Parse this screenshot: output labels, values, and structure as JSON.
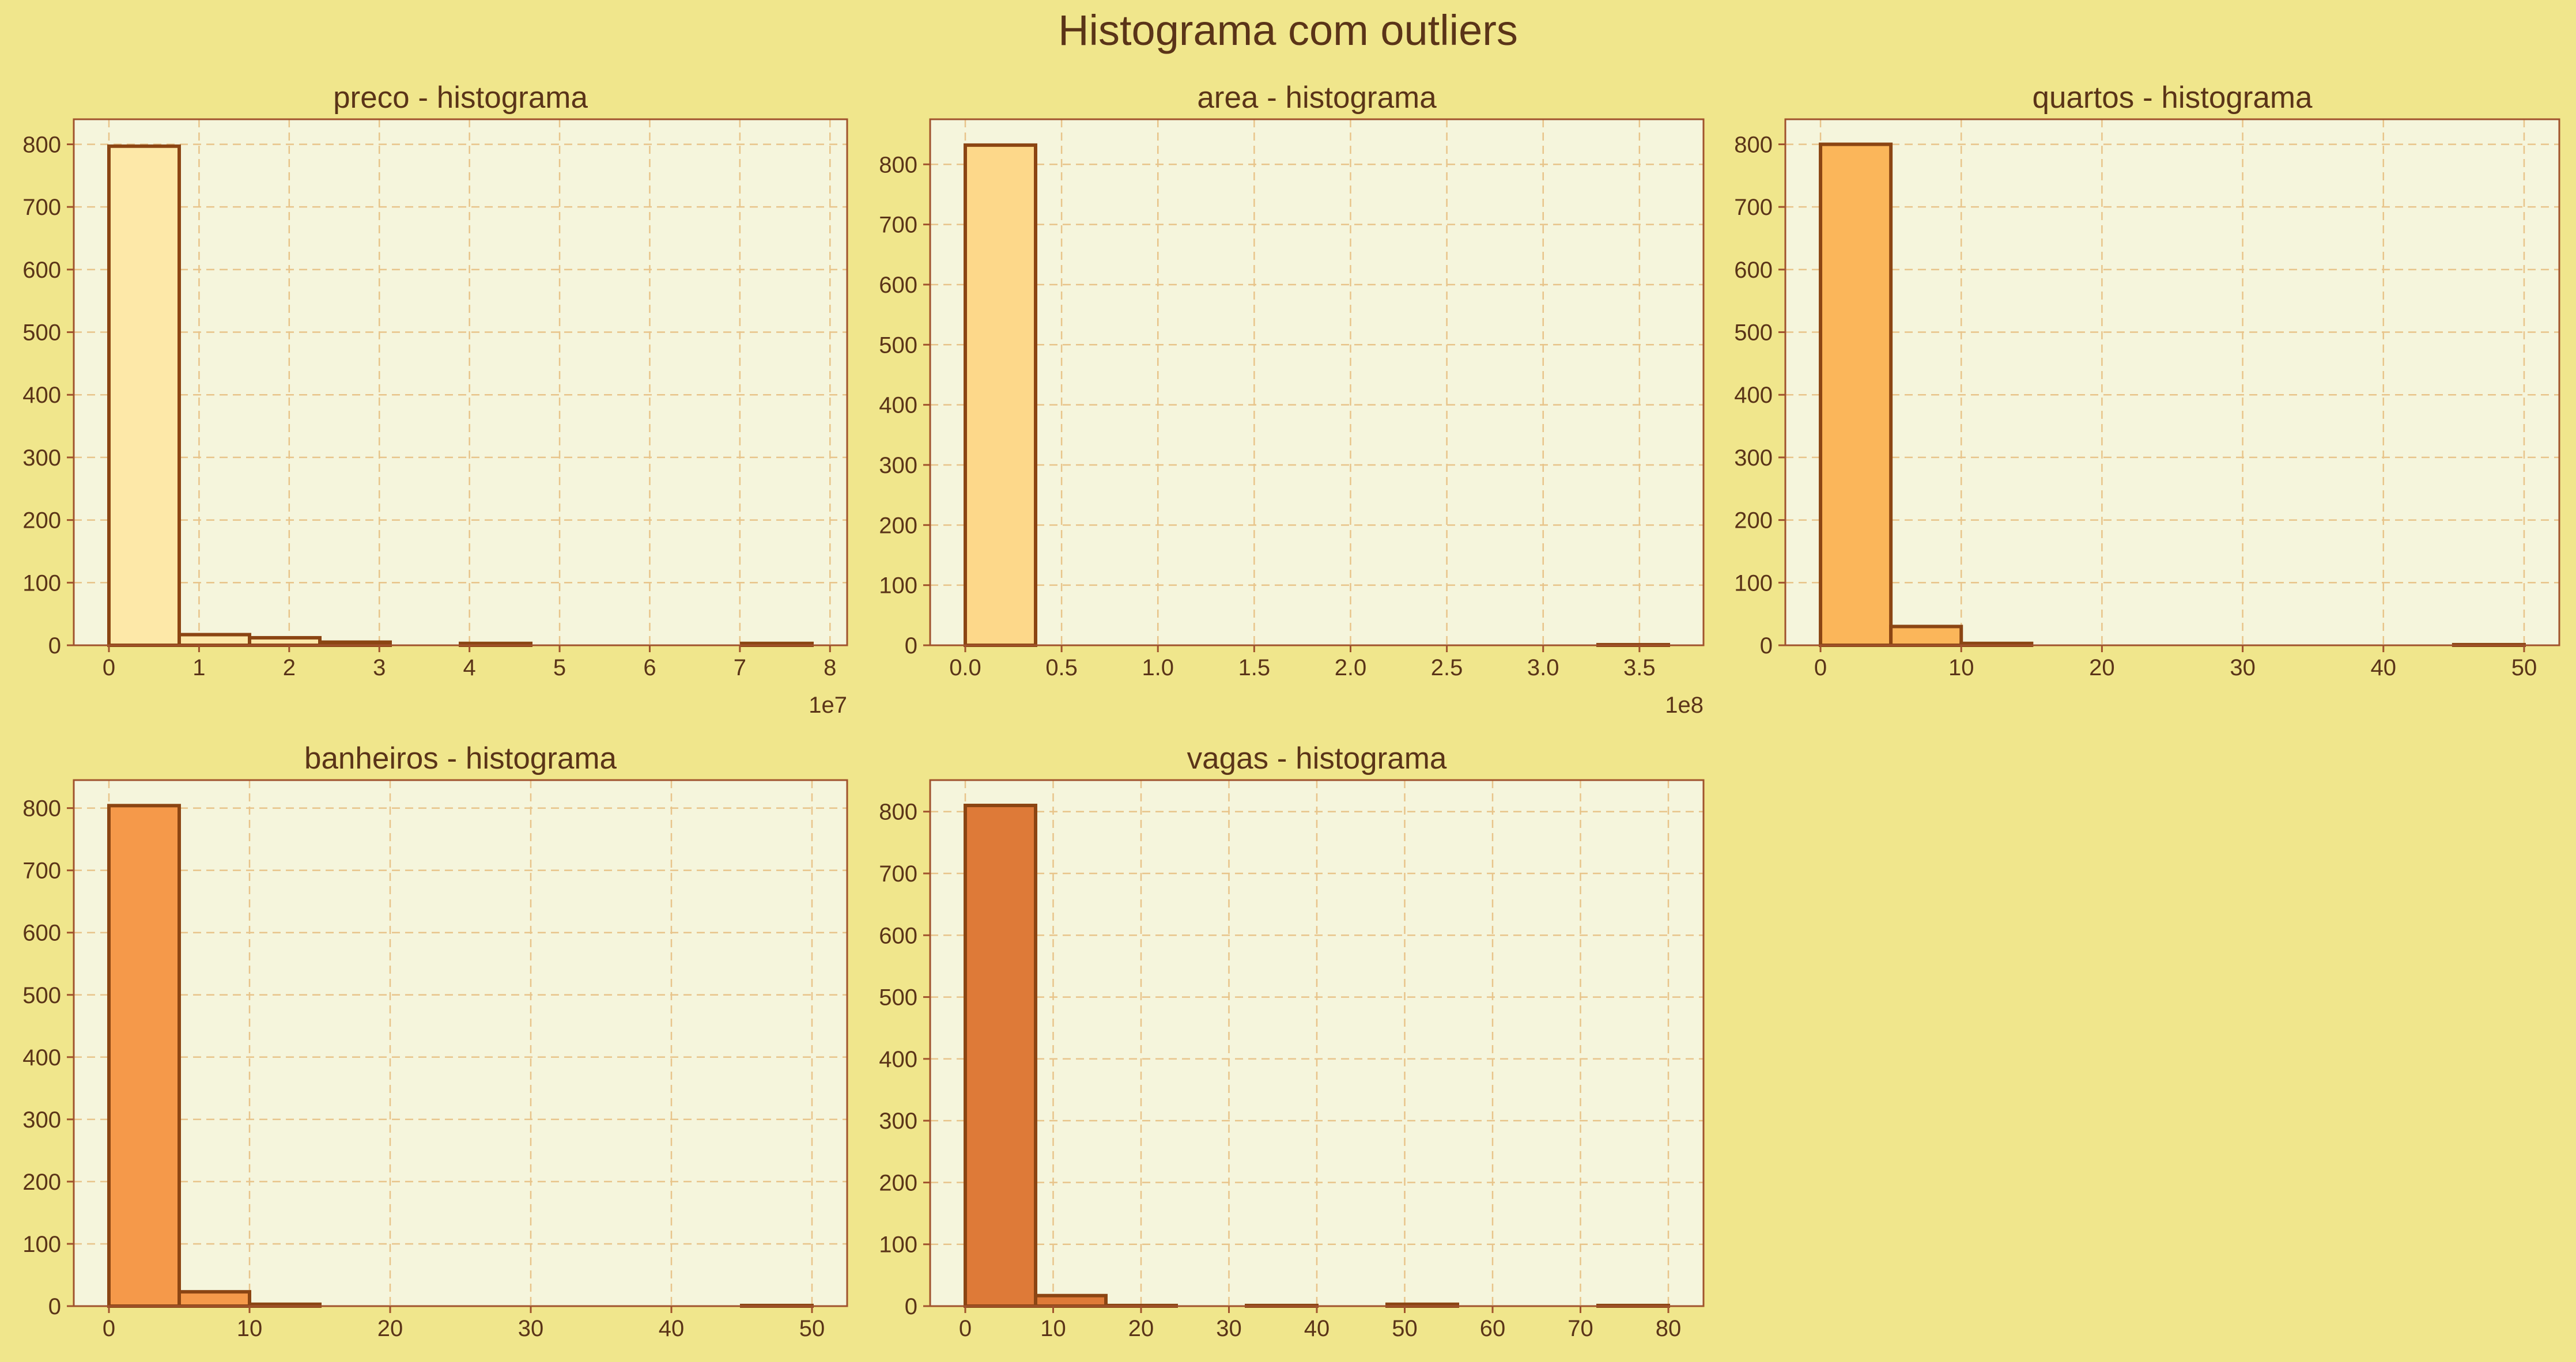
{
  "figure": {
    "suptitle": "Histograma com outliers",
    "background": "#f0e68c",
    "axes_background": "#f5f5dc",
    "edge_color": "#8b4513",
    "grid_color": "#e8c48a"
  },
  "chart_data": [
    {
      "type": "bar",
      "title": "preco - histograma",
      "xlabel": "",
      "ylabel": "",
      "grid": true,
      "color": "#fde8a8",
      "bin_edges": [
        0,
        7800000,
        15600000,
        23400000,
        31200000,
        39000000,
        46800000,
        54600000,
        62400000,
        70200000,
        78000000
      ],
      "values": [
        797,
        17,
        12,
        5,
        0,
        3,
        0,
        0,
        0,
        3
      ],
      "xlim": [
        -3900000,
        81900000
      ],
      "ylim": [
        0,
        840
      ],
      "xticks": [
        0,
        10000000,
        20000000,
        30000000,
        40000000,
        50000000,
        60000000,
        70000000,
        80000000
      ],
      "xtick_labels": [
        "0",
        "1",
        "2",
        "3",
        "4",
        "5",
        "6",
        "7",
        "8"
      ],
      "yticks": [
        0,
        100,
        200,
        300,
        400,
        500,
        600,
        700,
        800
      ],
      "ytick_labels": [
        "0",
        "100",
        "200",
        "300",
        "400",
        "500",
        "600",
        "700",
        "800"
      ],
      "offset_text": "1e7"
    },
    {
      "type": "bar",
      "title": "area - histograma",
      "xlabel": "",
      "ylabel": "",
      "grid": true,
      "color": "#fdd88a",
      "bin_edges": [
        0,
        36500000,
        73000000,
        109500000,
        146000000,
        182500000,
        219000000,
        255500000,
        292000000,
        328500000,
        365000000
      ],
      "values": [
        832,
        0,
        0,
        0,
        0,
        0,
        0,
        0,
        0,
        1
      ],
      "xlim": [
        -18250000,
        383250000
      ],
      "ylim": [
        0,
        875
      ],
      "xticks": [
        0,
        50000000,
        100000000,
        150000000,
        200000000,
        250000000,
        300000000,
        350000000
      ],
      "xtick_labels": [
        "0.0",
        "0.5",
        "1.0",
        "1.5",
        "2.0",
        "2.5",
        "3.0",
        "3.5"
      ],
      "yticks": [
        0,
        100,
        200,
        300,
        400,
        500,
        600,
        700,
        800
      ],
      "ytick_labels": [
        "0",
        "100",
        "200",
        "300",
        "400",
        "500",
        "600",
        "700",
        "800"
      ],
      "offset_text": "1e8"
    },
    {
      "type": "bar",
      "title": "quartos - histograma",
      "xlabel": "",
      "ylabel": "",
      "grid": true,
      "color": "#fbb65a",
      "bin_edges": [
        0,
        5,
        10,
        15,
        20,
        25,
        30,
        35,
        40,
        45,
        50
      ],
      "values": [
        800,
        30,
        3,
        0,
        0,
        0,
        0,
        0,
        0,
        1
      ],
      "xlim": [
        -2.5,
        52.5
      ],
      "ylim": [
        0,
        840
      ],
      "xticks": [
        0,
        10,
        20,
        30,
        40,
        50
      ],
      "xtick_labels": [
        "0",
        "10",
        "20",
        "30",
        "40",
        "50"
      ],
      "yticks": [
        0,
        100,
        200,
        300,
        400,
        500,
        600,
        700,
        800
      ],
      "ytick_labels": [
        "0",
        "100",
        "200",
        "300",
        "400",
        "500",
        "600",
        "700",
        "800"
      ],
      "offset_text": ""
    },
    {
      "type": "bar",
      "title": "banheiros - histograma",
      "xlabel": "",
      "ylabel": "",
      "grid": true,
      "color": "#f5994a",
      "bin_edges": [
        0,
        5,
        10,
        15,
        20,
        25,
        30,
        35,
        40,
        45,
        50
      ],
      "values": [
        804,
        23,
        3,
        0,
        0,
        0,
        0,
        0,
        0,
        1
      ],
      "xlim": [
        -2.5,
        52.5
      ],
      "ylim": [
        0,
        845
      ],
      "xticks": [
        0,
        10,
        20,
        30,
        40,
        50
      ],
      "xtick_labels": [
        "0",
        "10",
        "20",
        "30",
        "40",
        "50"
      ],
      "yticks": [
        0,
        100,
        200,
        300,
        400,
        500,
        600,
        700,
        800
      ],
      "ytick_labels": [
        "0",
        "100",
        "200",
        "300",
        "400",
        "500",
        "600",
        "700",
        "800"
      ],
      "offset_text": ""
    },
    {
      "type": "bar",
      "title": "vagas - histograma",
      "xlabel": "",
      "ylabel": "",
      "grid": true,
      "color": "#de7a38",
      "bin_edges": [
        0,
        8,
        16,
        24,
        32,
        40,
        48,
        56,
        64,
        72,
        80
      ],
      "values": [
        810,
        17,
        1,
        0,
        1,
        0,
        3,
        0,
        0,
        1
      ],
      "xlim": [
        -4,
        84
      ],
      "ylim": [
        0,
        851
      ],
      "xticks": [
        0,
        10,
        20,
        30,
        40,
        50,
        60,
        70,
        80
      ],
      "xtick_labels": [
        "0",
        "10",
        "20",
        "30",
        "40",
        "50",
        "60",
        "70",
        "80"
      ],
      "yticks": [
        0,
        100,
        200,
        300,
        400,
        500,
        600,
        700,
        800
      ],
      "ytick_labels": [
        "0",
        "100",
        "200",
        "300",
        "400",
        "500",
        "600",
        "700",
        "800"
      ],
      "offset_text": ""
    }
  ]
}
